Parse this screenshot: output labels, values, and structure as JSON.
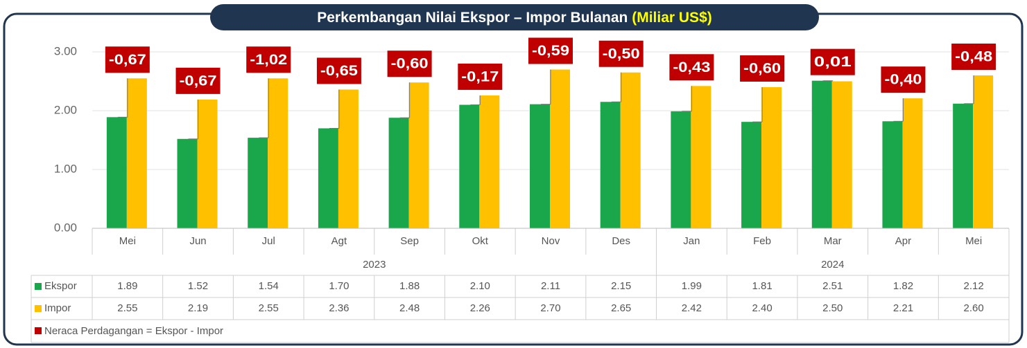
{
  "chart_data": {
    "type": "bar",
    "title": "Perkembangan Nilai Ekspor – Impor Bulanan",
    "title_unit": "(Miliar US$)",
    "categories": [
      "Mei",
      "Jun",
      "Jul",
      "Agt",
      "Sep",
      "Okt",
      "Nov",
      "Des",
      "Jan",
      "Feb",
      "Mar",
      "Apr",
      "Mei"
    ],
    "x_groups": [
      {
        "label": "2023",
        "count": 8
      },
      {
        "label": "2024",
        "count": 5
      }
    ],
    "series": [
      {
        "name": "Ekspor",
        "color": "#1aa64a",
        "values": [
          1.89,
          1.52,
          1.54,
          1.7,
          1.88,
          2.1,
          2.11,
          2.15,
          1.99,
          1.81,
          2.51,
          1.82,
          2.12
        ],
        "value_labels": [
          "1.89",
          "1.52",
          "1.54",
          "1.70",
          "1.88",
          "2.10",
          "2.11",
          "2.15",
          "1.99",
          "1.81",
          "2.51",
          "1.82",
          "2.12"
        ]
      },
      {
        "name": "Impor",
        "color": "#ffc000",
        "values": [
          2.55,
          2.19,
          2.55,
          2.36,
          2.48,
          2.26,
          2.7,
          2.65,
          2.42,
          2.4,
          2.5,
          2.21,
          2.6
        ],
        "value_labels": [
          "2.55",
          "2.19",
          "2.55",
          "2.36",
          "2.48",
          "2.26",
          "2.70",
          "2.65",
          "2.42",
          "2.40",
          "2.50",
          "2.21",
          "2.60"
        ]
      },
      {
        "name": "Neraca Perdagangan = Ekspor - Impor",
        "color": "#c00000",
        "values": [
          -0.67,
          -0.67,
          -1.02,
          -0.65,
          -0.6,
          -0.17,
          -0.59,
          -0.5,
          -0.43,
          -0.6,
          0.01,
          -0.4,
          -0.48
        ],
        "value_labels": [
          "-0,67",
          "-0,67",
          "-1,02",
          "-0,65",
          "-0,60",
          "-0,17",
          "-0,59",
          "-0,50",
          "-0,43",
          "-0,60",
          "0,01",
          "-0,40",
          "-0,48"
        ]
      }
    ],
    "ylim": [
      0,
      3
    ],
    "yticks": [
      {
        "value": 0,
        "label": "0.00"
      },
      {
        "value": 1,
        "label": "1.00"
      },
      {
        "value": 2,
        "label": "2.00"
      },
      {
        "value": 3,
        "label": "3.00"
      }
    ],
    "grid": true
  }
}
